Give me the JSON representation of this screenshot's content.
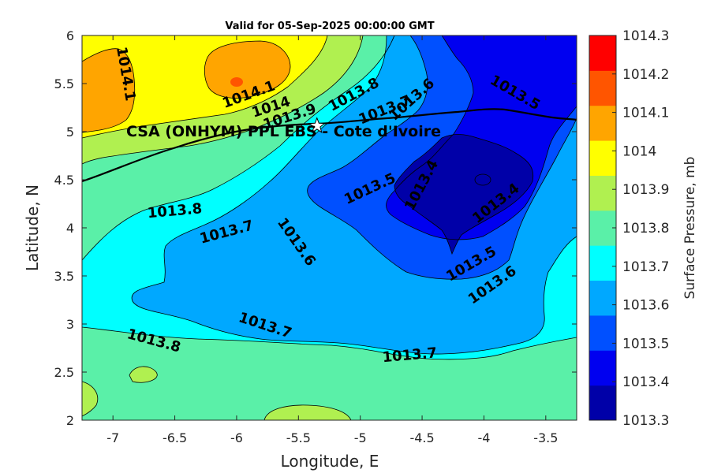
{
  "chart_data": {
    "type": "contour",
    "title": "Valid for 05-Sep-2025 00:00:00 GMT",
    "xlabel": "Longitude, E",
    "ylabel": "Latitude, N",
    "xlim": [
      -7.25,
      -3.25
    ],
    "ylim": [
      2,
      6
    ],
    "xticks": [
      -7,
      -6.5,
      -6,
      -5.5,
      -5,
      -4.5,
      -4,
      -3.5
    ],
    "yticks": [
      2,
      2.5,
      3,
      3.5,
      4,
      4.5,
      5,
      5.5,
      6
    ],
    "xtick_labels": [
      "-7",
      "-6.5",
      "-6",
      "-5.5",
      "-5",
      "-4.5",
      "-4",
      "-3.5"
    ],
    "ytick_labels": [
      "2",
      "2.5",
      "3",
      "3.5",
      "4",
      "4.5",
      "5",
      "5.5",
      "6"
    ],
    "colorbar": {
      "label": "Surface Pressure, mb",
      "levels": [
        1013.3,
        1013.4,
        1013.5,
        1013.6,
        1013.7,
        1013.8,
        1013.9,
        1014,
        1014.1,
        1014.2,
        1014.3
      ],
      "tick_labels": [
        "1013.3",
        "1013.4",
        "1013.5",
        "1013.6",
        "1013.7",
        "1013.8",
        "1013.9",
        "1014",
        "1014.1",
        "1014.2",
        "1014.3"
      ],
      "colors": [
        "#0000a8",
        "#0000f0",
        "#0050ff",
        "#00a8ff",
        "#00ffff",
        "#5af0a8",
        "#b0f050",
        "#ffff00",
        "#ffa500",
        "#ff5500",
        "#ff0000"
      ]
    },
    "contour_labels": [
      {
        "text": "1014.1",
        "lon": -6.9,
        "lat": 5.6,
        "angle": 80
      },
      {
        "text": "1014.1",
        "lon": -5.9,
        "lat": 5.38,
        "angle": -20
      },
      {
        "text": "1014",
        "lon": -5.72,
        "lat": 5.25,
        "angle": -18
      },
      {
        "text": "1013.9",
        "lon": -5.57,
        "lat": 5.15,
        "angle": -18
      },
      {
        "text": "1013.8",
        "lon": -5.05,
        "lat": 5.38,
        "angle": -28
      },
      {
        "text": "1013.7",
        "lon": -4.8,
        "lat": 5.22,
        "angle": -22
      },
      {
        "text": "1013.6",
        "lon": -4.58,
        "lat": 5.33,
        "angle": -42
      },
      {
        "text": "1013.5",
        "lon": -3.75,
        "lat": 5.4,
        "angle": 30
      },
      {
        "text": "1013.8",
        "lon": -6.5,
        "lat": 4.17,
        "angle": -5
      },
      {
        "text": "1013.7",
        "lon": -6.08,
        "lat": 3.95,
        "angle": -15
      },
      {
        "text": "1013.6",
        "lon": -5.52,
        "lat": 3.85,
        "angle": 55
      },
      {
        "text": "1013.5",
        "lon": -4.92,
        "lat": 4.4,
        "angle": -25
      },
      {
        "text": "1013.4",
        "lon": -4.5,
        "lat": 4.44,
        "angle": -62
      },
      {
        "text": "1013.4",
        "lon": -3.9,
        "lat": 4.25,
        "angle": -38
      },
      {
        "text": "1013.5",
        "lon": -4.1,
        "lat": 3.62,
        "angle": -30
      },
      {
        "text": "1013.6",
        "lon": -3.93,
        "lat": 3.4,
        "angle": -35
      },
      {
        "text": "1013.7",
        "lon": -5.77,
        "lat": 2.98,
        "angle": 18
      },
      {
        "text": "1013.8",
        "lon": -6.67,
        "lat": 2.82,
        "angle": 15
      },
      {
        "text": "1013.7",
        "lon": -4.6,
        "lat": 2.67,
        "angle": -5
      }
    ],
    "site": {
      "name": "CSA (ONHYM) PPL EBS  - Cote d'Ivoire",
      "lon": -5.35,
      "lat": 5.06,
      "marker": "star"
    }
  }
}
